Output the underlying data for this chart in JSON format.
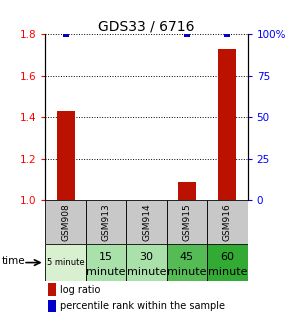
{
  "title": "GDS33 / 6716",
  "samples": [
    "GSM908",
    "GSM913",
    "GSM914",
    "GSM915",
    "GSM916"
  ],
  "time_labels_line1": [
    "5 minute",
    "15",
    "30",
    "45",
    "60"
  ],
  "time_labels_line2": [
    "",
    "minute",
    "minute",
    "minute",
    "minute"
  ],
  "log_ratios": [
    1.43,
    1.0,
    1.0,
    1.09,
    1.73
  ],
  "percentile_ranks": [
    100,
    0,
    0,
    100,
    100
  ],
  "ylim": [
    1.0,
    1.8
  ],
  "yticks_left": [
    1.0,
    1.2,
    1.4,
    1.6,
    1.8
  ],
  "yticks_right": [
    0,
    25,
    50,
    75,
    100
  ],
  "bar_color": "#bb1100",
  "percentile_color": "#0000cc",
  "bar_width": 0.45,
  "cell_colors_gsm": [
    "#c8c8c8",
    "#c8c8c8",
    "#c8c8c8",
    "#c8c8c8",
    "#c8c8c8"
  ],
  "cell_colors_time": [
    "#d8f0d0",
    "#aae0aa",
    "#aae0aa",
    "#55bb55",
    "#33aa33"
  ],
  "legend_items": [
    {
      "color": "#bb1100",
      "label": "log ratio"
    },
    {
      "color": "#0000cc",
      "label": "percentile rank within the sample"
    }
  ]
}
